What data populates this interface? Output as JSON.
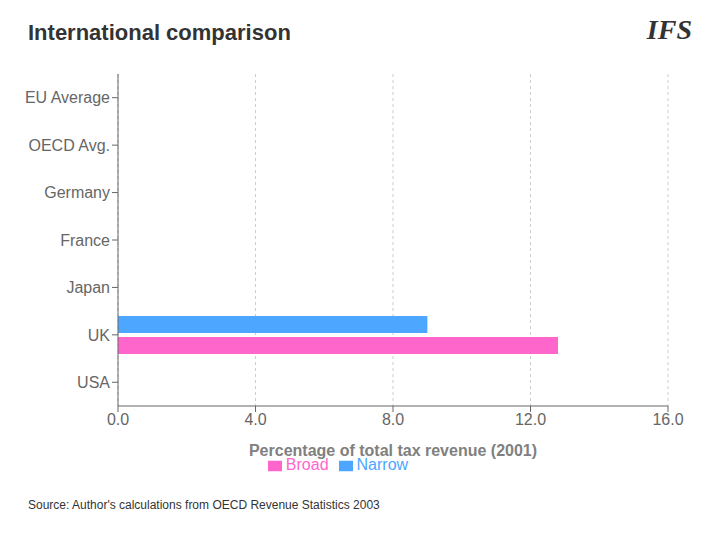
{
  "chart_data": {
    "type": "bar",
    "orientation": "horizontal",
    "title": "International comparison",
    "x_label": "Percentage of total tax revenue (2001)",
    "categories": [
      "EU Average",
      "OECD Avg.",
      "Germany",
      "France",
      "Japan",
      "UK",
      "USA"
    ],
    "series": [
      {
        "name": "Narrow",
        "color": "#4da6ff",
        "values": [
          0.0,
          0.0,
          0.0,
          0.0,
          0.0,
          9.0,
          0.0
        ]
      },
      {
        "name": "Broad",
        "color": "#ff66cc",
        "values": [
          0.0,
          0.0,
          0.0,
          0.0,
          0.0,
          12.8,
          0.0
        ]
      }
    ],
    "xlim": [
      0,
      16
    ],
    "xticks": [
      {
        "value": 0,
        "label": "0.0"
      },
      {
        "value": 4,
        "label": "4.0"
      },
      {
        "value": 8,
        "label": "8.0"
      },
      {
        "value": 12,
        "label": "12.0"
      },
      {
        "value": 16,
        "label": "16.0"
      }
    ],
    "grid": true,
    "legend": "bottom",
    "annotations": [
      "IFS",
      "Source: Author's calculations from OECD Revenue Statistics 2003"
    ]
  }
}
